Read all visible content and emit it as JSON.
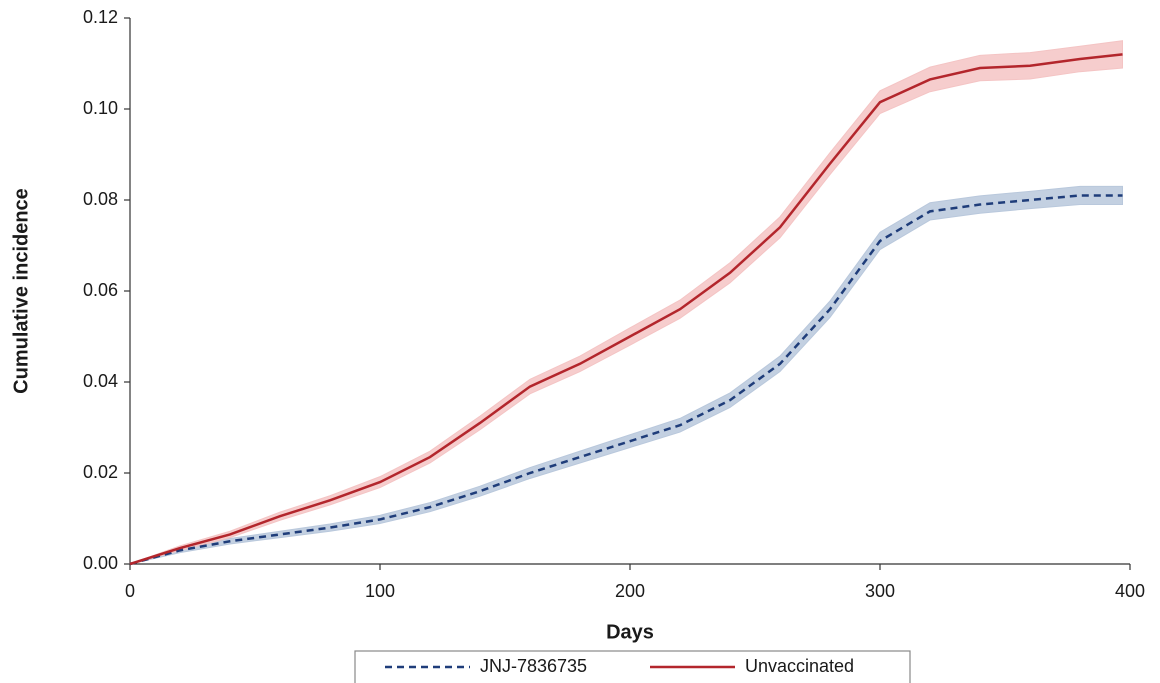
{
  "chart_data": {
    "type": "line",
    "xlabel": "Days",
    "ylabel": "Cumulative incidence",
    "x": [
      0,
      20,
      40,
      60,
      80,
      100,
      120,
      140,
      160,
      180,
      200,
      220,
      240,
      260,
      280,
      300,
      320,
      340,
      360,
      380,
      397
    ],
    "series": [
      {
        "name": "JNJ-7836735",
        "color": "#1f3d7a",
        "band_color": "#b9c8dc",
        "dashed": true,
        "values": [
          0,
          0.003,
          0.005,
          0.0065,
          0.008,
          0.0098,
          0.0125,
          0.016,
          0.02,
          0.0235,
          0.027,
          0.0305,
          0.036,
          0.044,
          0.056,
          0.071,
          0.0775,
          0.079,
          0.08,
          0.081,
          0.081
        ],
        "lower": [
          0,
          0.0025,
          0.0044,
          0.0058,
          0.0072,
          0.0089,
          0.0115,
          0.0149,
          0.0188,
          0.0222,
          0.0256,
          0.029,
          0.0344,
          0.0423,
          0.0542,
          0.0691,
          0.0756,
          0.0771,
          0.0781,
          0.079,
          0.079
        ],
        "upper": [
          0,
          0.0035,
          0.0056,
          0.0072,
          0.0088,
          0.0107,
          0.0135,
          0.0171,
          0.0212,
          0.0248,
          0.0284,
          0.032,
          0.0376,
          0.0457,
          0.0578,
          0.0729,
          0.0794,
          0.0809,
          0.0819,
          0.083,
          0.083
        ]
      },
      {
        "name": "Unvaccinated",
        "color": "#b3262c",
        "band_color": "#f4c4c4",
        "dashed": false,
        "values": [
          0,
          0.0035,
          0.0065,
          0.0105,
          0.014,
          0.018,
          0.0235,
          0.031,
          0.039,
          0.044,
          0.05,
          0.056,
          0.064,
          0.074,
          0.088,
          0.1015,
          0.1065,
          0.109,
          0.1095,
          0.111,
          0.112
        ],
        "lower": [
          0,
          0.003,
          0.0058,
          0.0096,
          0.013,
          0.0168,
          0.0222,
          0.0295,
          0.0374,
          0.0423,
          0.0481,
          0.054,
          0.0618,
          0.0717,
          0.0856,
          0.099,
          0.1038,
          0.1062,
          0.1066,
          0.1082,
          0.109
        ],
        "upper": [
          0,
          0.004,
          0.0072,
          0.0114,
          0.015,
          0.0192,
          0.0248,
          0.0325,
          0.0406,
          0.0457,
          0.0519,
          0.058,
          0.0662,
          0.0763,
          0.0904,
          0.104,
          0.1092,
          0.1118,
          0.1124,
          0.1138,
          0.115
        ]
      }
    ],
    "xlim": [
      0,
      400
    ],
    "xticks": [
      0,
      100,
      200,
      300,
      400
    ],
    "ylim": [
      0,
      0.12
    ],
    "yticks": [
      {
        "value": 0,
        "label": "0.00"
      },
      {
        "value": 0.02,
        "label": "0.02"
      },
      {
        "value": 0.04,
        "label": "0.04"
      },
      {
        "value": 0.06,
        "label": "0.06"
      },
      {
        "value": 0.08,
        "label": "0.08"
      },
      {
        "value": 0.1,
        "label": "0.10"
      },
      {
        "value": 0.12,
        "label": "0.12"
      }
    ],
    "grid": false,
    "legend": "bottom"
  }
}
